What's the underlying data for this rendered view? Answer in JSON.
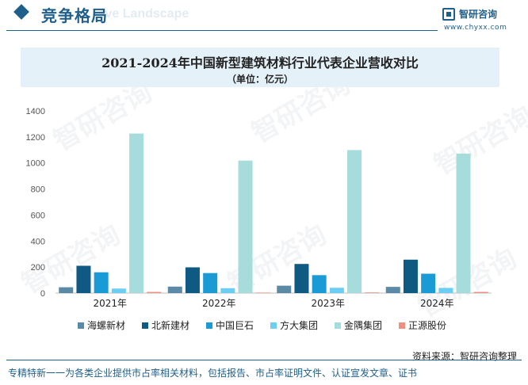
{
  "header": {
    "title": "竞争格局",
    "ghost_text": "ive Landscape",
    "logo_name": "智研咨询",
    "logo_url": "www.chyxx.com"
  },
  "chart_data": {
    "type": "bar",
    "title": "2021-2024年中国新型建筑材料行业代表企业营收对比",
    "subtitle": "（单位：亿元）",
    "categories": [
      "2021年",
      "2022年",
      "2023年",
      "2024年"
    ],
    "ylim": [
      0,
      1400
    ],
    "yticks": [
      0,
      200,
      400,
      600,
      800,
      1000,
      1200,
      1400
    ],
    "grid": false,
    "legend_position": "bottom",
    "series": [
      {
        "name": "海螺新材",
        "color": "#5b8aa6",
        "values": [
          45,
          50,
          57,
          48
        ]
      },
      {
        "name": "北新建材",
        "color": "#0f5a82",
        "values": [
          210,
          198,
          224,
          257
        ]
      },
      {
        "name": "中国巨石",
        "color": "#1b9bd6",
        "values": [
          160,
          154,
          138,
          149
        ]
      },
      {
        "name": "方大集团",
        "color": "#6ccef5",
        "values": [
          35,
          38,
          41,
          40
        ]
      },
      {
        "name": "金隅集团",
        "color": "#a6dcdb",
        "values": [
          1226,
          1018,
          1099,
          1072
        ]
      },
      {
        "name": "正源股份",
        "color": "#ee8f7f",
        "values": [
          9,
          4,
          5,
          9
        ]
      }
    ]
  },
  "source": "资料来源：智研咨询整理",
  "footer": "专精特新一一为各类企业提供市占率相关材料，包括报告、市占率证明文件、认证宣发文章、证书",
  "watermark_text": "智研咨询"
}
